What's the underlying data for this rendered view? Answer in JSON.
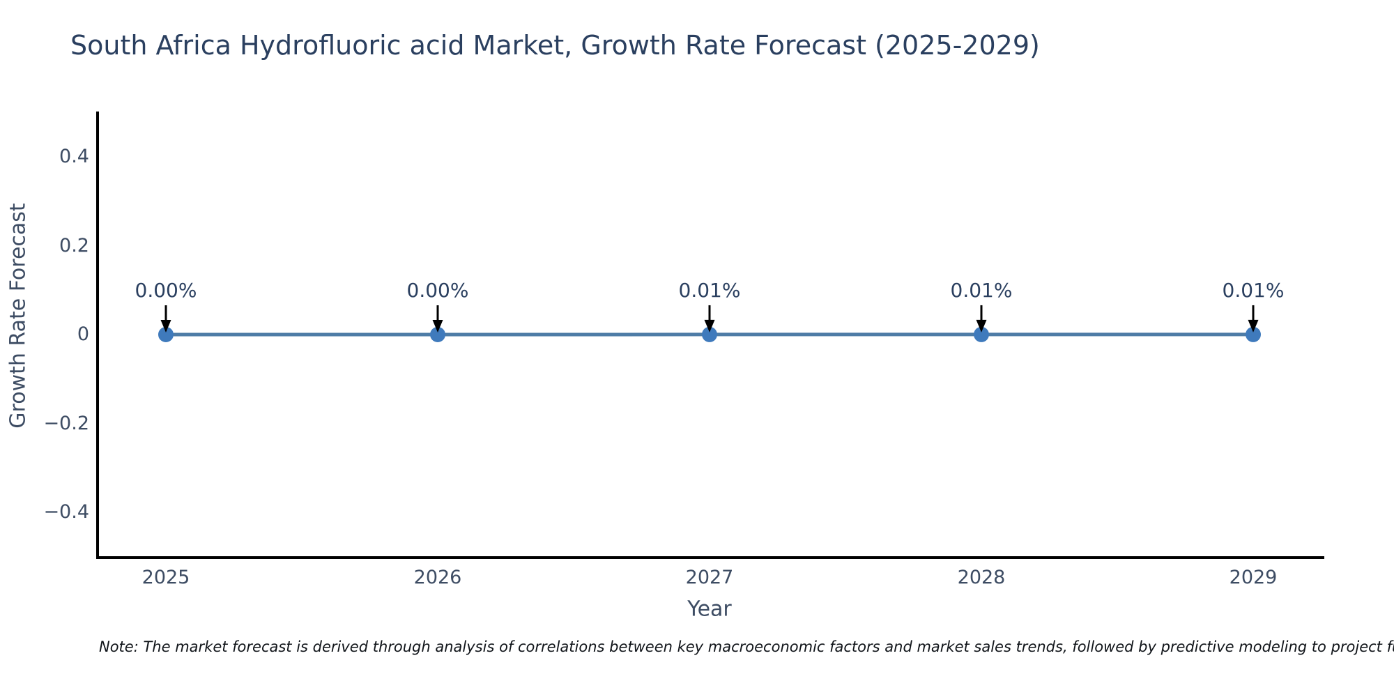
{
  "title": "South Africa Hydrofluoric acid Market, Growth Rate Forecast (2025-2029)",
  "note": "Note: The market forecast is derived through analysis of correlations between key macroeconomic factors and market sales trends, followed by predictive modeling to project future sales",
  "chart_data": {
    "type": "line",
    "title": "South Africa Hydrofluoric acid Market, Growth Rate Forecast (2025-2029)",
    "xlabel": "Year",
    "ylabel": "Growth Rate Forecast",
    "x": [
      2025,
      2026,
      2027,
      2028,
      2029
    ],
    "series": [
      {
        "name": "Growth Rate Forecast",
        "values": [
          0.0,
          0.0,
          0.0001,
          0.0001,
          0.0001
        ]
      }
    ],
    "point_labels": [
      "0.00%",
      "0.00%",
      "0.01%",
      "0.01%",
      "0.01%"
    ],
    "xtick_labels": [
      "2025",
      "2026",
      "2027",
      "2028",
      "2029"
    ],
    "yticks": [
      0.4,
      0.2,
      0,
      -0.2,
      -0.4
    ],
    "ytick_labels": [
      "0.4",
      "0.2",
      "0",
      "−0.2",
      "−0.4"
    ],
    "ylim": [
      -0.5,
      0.5
    ],
    "grid": false,
    "legend": "none",
    "annotation_arrows": true,
    "colors": {
      "line": "#4e7ca6",
      "marker": "#3f7abc",
      "arrow": "#000000",
      "axis": "#000000",
      "title_text": "#2a3f5f",
      "tick_text": "#3d4c63",
      "note_text": "#101419"
    }
  }
}
